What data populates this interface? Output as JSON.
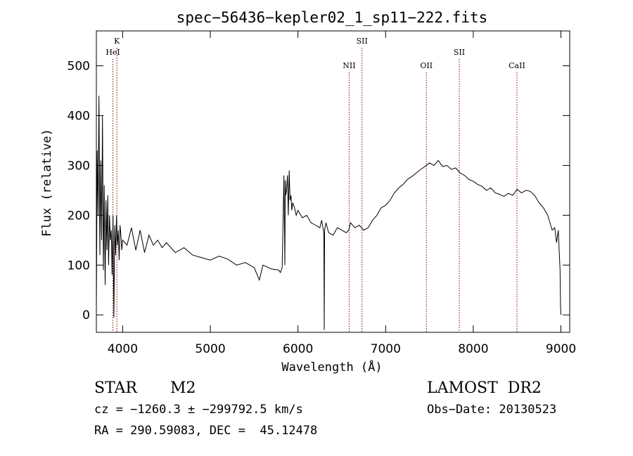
{
  "chart_data": {
    "type": "line",
    "title": "spec−56436−kepler02_1_sp11−222.fits",
    "xlabel": "Wavelength (Å)",
    "ylabel": "Flux (relative)",
    "xlim": [
      3700,
      9100
    ],
    "ylim": [
      -35,
      570
    ],
    "xticks": [
      4000,
      5000,
      6000,
      7000,
      8000,
      9000
    ],
    "yticks": [
      0,
      100,
      200,
      300,
      400,
      500
    ],
    "grid": false,
    "series": [
      {
        "x": [
          3700,
          3710,
          3720,
          3730,
          3740,
          3750,
          3760,
          3770,
          3780,
          3790,
          3800,
          3810,
          3820,
          3830,
          3840,
          3850,
          3860,
          3870,
          3880,
          3890,
          3900,
          3910,
          3920,
          3930,
          3940,
          3950,
          3960,
          3970,
          3980,
          3990,
          4000,
          4050,
          4100,
          4150,
          4200,
          4250,
          4300,
          4350,
          4400,
          4450,
          4500,
          4600,
          4700,
          4800,
          4900,
          5000,
          5100,
          5200,
          5300,
          5400,
          5500,
          5560,
          5600,
          5700,
          5780,
          5800,
          5820,
          5840,
          5850,
          5855,
          5860,
          5870,
          5880,
          5890,
          5900,
          5910,
          5920,
          5930,
          5940,
          5960,
          5980,
          6000,
          6050,
          6100,
          6150,
          6200,
          6250,
          6270,
          6290,
          6296,
          6300,
          6304,
          6320,
          6350,
          6400,
          6450,
          6500,
          6550,
          6580,
          6600,
          6650,
          6700,
          6750,
          6800,
          6850,
          6900,
          6950,
          7000,
          7050,
          7100,
          7150,
          7200,
          7250,
          7300,
          7350,
          7400,
          7450,
          7500,
          7550,
          7600,
          7650,
          7700,
          7750,
          7800,
          7850,
          7900,
          7950,
          8000,
          8050,
          8100,
          8150,
          8200,
          8250,
          8300,
          8350,
          8400,
          8450,
          8500,
          8550,
          8600,
          8650,
          8700,
          8750,
          8800,
          8850,
          8900,
          8930,
          8950,
          8970,
          8980,
          8990,
          8995,
          9000
        ],
        "y": [
          10,
          330,
          200,
          440,
          120,
          310,
          150,
          400,
          90,
          260,
          60,
          230,
          130,
          240,
          100,
          200,
          150,
          170,
          80,
          200,
          -5,
          180,
          120,
          200,
          140,
          170,
          110,
          180,
          160,
          130,
          150,
          140,
          175,
          130,
          170,
          125,
          160,
          140,
          150,
          135,
          145,
          125,
          135,
          120,
          115,
          110,
          118,
          112,
          100,
          105,
          95,
          70,
          100,
          92,
          90,
          85,
          95,
          280,
          100,
          270,
          240,
          250,
          280,
          200,
          290,
          230,
          240,
          210,
          225,
          215,
          200,
          210,
          195,
          200,
          185,
          180,
          175,
          190,
          170,
          160,
          -30,
          170,
          185,
          165,
          160,
          175,
          170,
          165,
          170,
          185,
          175,
          180,
          170,
          175,
          190,
          200,
          215,
          220,
          230,
          245,
          255,
          262,
          272,
          278,
          285,
          292,
          298,
          305,
          300,
          310,
          298,
          300,
          292,
          295,
          285,
          280,
          272,
          268,
          262,
          258,
          250,
          255,
          245,
          242,
          238,
          244,
          240,
          252,
          245,
          250,
          248,
          240,
          225,
          215,
          200,
          170,
          175,
          145,
          170,
          130,
          90,
          20,
          0
        ]
      }
    ],
    "annotations": [
      {
        "label": "K",
        "x": 3934,
        "row": 1
      },
      {
        "label": "HeI",
        "x": 3889,
        "row": 2
      },
      {
        "label": "SII",
        "x": 6731,
        "row": 1
      },
      {
        "label": "NII",
        "x": 6584,
        "row": 3
      },
      {
        "label": "OII",
        "x": 7465,
        "row": 3
      },
      {
        "label": "SII",
        "x": 7840,
        "row": 2
      },
      {
        "label": "CaII",
        "x": 8498,
        "row": 3
      }
    ],
    "line_color": "#000000",
    "marker_color": "#8b0000"
  },
  "info": {
    "object_type": "STAR",
    "subclass": "M2",
    "survey": "LAMOST  DR2",
    "cz": "cz = −1260.3 ± −299792.5 km/s",
    "obs_date": "Obs−Date: 20130523",
    "coords": "RA = 290.59083, DEC =  45.12478"
  }
}
